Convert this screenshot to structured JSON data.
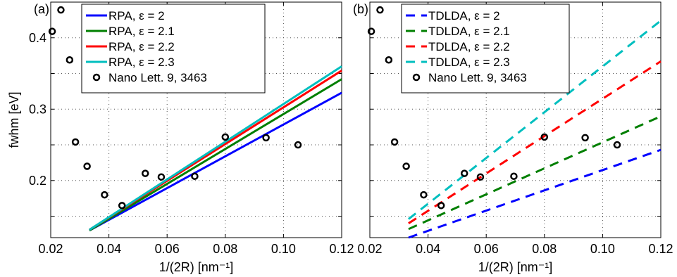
{
  "chart_data": [
    {
      "type": "line",
      "panel_label": "(a)",
      "xlabel": "1/(2R) [nm⁻¹]",
      "ylabel": "fwhm [eV]",
      "xlim": [
        0.02,
        0.12
      ],
      "ylim": [
        0.12,
        0.45
      ],
      "x_ticks": [
        "0.02",
        "0.04",
        "0.06",
        "0.08",
        "0.10",
        "0.12"
      ],
      "y_ticks": [
        "0.2",
        "0.3",
        "0.4"
      ],
      "grid": true,
      "legend_position": "top-center",
      "series": [
        {
          "name": "RPA, ε = 2",
          "color": "#0000ff",
          "style": "solid",
          "x": [
            0.0333,
            0.12
          ],
          "y": [
            0.13,
            0.323
          ]
        },
        {
          "name": "RPA, ε = 2.1",
          "color": "#007f00",
          "style": "solid",
          "x": [
            0.0333,
            0.12
          ],
          "y": [
            0.13,
            0.342
          ]
        },
        {
          "name": "RPA, ε = 2.2",
          "color": "#ff0000",
          "style": "solid",
          "x": [
            0.0333,
            0.12
          ],
          "y": [
            0.131,
            0.354
          ]
        },
        {
          "name": "RPA, ε = 2.3",
          "color": "#00bfbf",
          "style": "solid",
          "x": [
            0.0333,
            0.12
          ],
          "y": [
            0.131,
            0.36
          ]
        }
      ],
      "markers": {
        "name": "Nano Lett. 9, 3463",
        "x": [
          0.0205,
          0.0235,
          0.0265,
          0.0285,
          0.0325,
          0.0385,
          0.0445,
          0.0525,
          0.058,
          0.0695,
          0.08,
          0.094,
          0.105
        ],
        "y": [
          0.409,
          0.439,
          0.369,
          0.254,
          0.22,
          0.18,
          0.165,
          0.21,
          0.205,
          0.206,
          0.261,
          0.26,
          0.25
        ]
      }
    },
    {
      "type": "line",
      "panel_label": "(b)",
      "xlabel": "1/(2R) [nm⁻¹]",
      "ylabel": "",
      "xlim": [
        0.02,
        0.12
      ],
      "ylim": [
        0.12,
        0.45
      ],
      "x_ticks": [
        "0.02",
        "0.04",
        "0.06",
        "0.08",
        "0.10",
        "0.12"
      ],
      "y_ticks": [],
      "grid": true,
      "legend_position": "top-center",
      "series": [
        {
          "name": "TDLDA, ε = 2",
          "color": "#0000ff",
          "style": "dashed",
          "x": [
            0.0333,
            0.12
          ],
          "y": [
            0.12,
            0.243
          ]
        },
        {
          "name": "TDLDA, ε = 2.1",
          "color": "#007f00",
          "style": "dashed",
          "x": [
            0.0333,
            0.12
          ],
          "y": [
            0.132,
            0.29
          ]
        },
        {
          "name": "TDLDA, ε = 2.2",
          "color": "#ff0000",
          "style": "dashed",
          "x": [
            0.0333,
            0.12
          ],
          "y": [
            0.14,
            0.367
          ]
        },
        {
          "name": "TDLDA, ε = 2.3",
          "color": "#00bfbf",
          "style": "dashed",
          "x": [
            0.0333,
            0.12
          ],
          "y": [
            0.146,
            0.424
          ]
        }
      ],
      "markers": {
        "name": "Nano Lett. 9, 3463",
        "x": [
          0.0205,
          0.0235,
          0.0265,
          0.0285,
          0.0325,
          0.0385,
          0.0445,
          0.0525,
          0.058,
          0.0695,
          0.08,
          0.094,
          0.105
        ],
        "y": [
          0.409,
          0.439,
          0.369,
          0.254,
          0.22,
          0.18,
          0.165,
          0.21,
          0.205,
          0.206,
          0.261,
          0.26,
          0.25
        ]
      }
    }
  ]
}
